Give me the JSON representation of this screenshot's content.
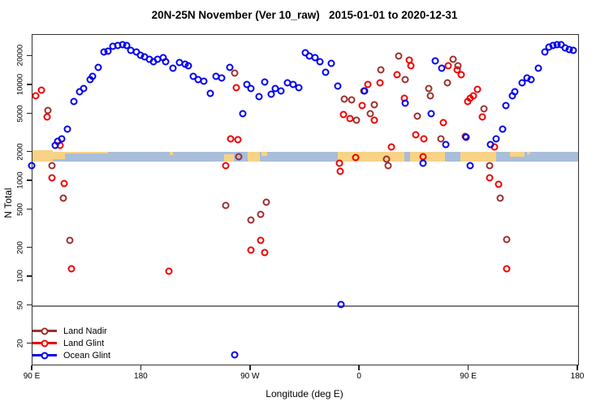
{
  "title": "20N-25N November (Ver 10_raw)   2015-01-01 to 2020-12-31",
  "legend": {
    "items": [
      {
        "label": "Land Nadir",
        "series": "land-nadir",
        "color": "#9e2f2f"
      },
      {
        "label": "Land Glint",
        "series": "land-glint",
        "color": "#ee0000"
      },
      {
        "label": "Ocean Glint",
        "series": "ocean-glint",
        "color": "#0000ee"
      }
    ]
  },
  "chart_data": {
    "type": "scatter",
    "title": "20N-25N November (Ver 10_raw)   2015-01-01 to 2020-12-31",
    "xlabel": "Longitude (deg E)",
    "ylabel": "N Total",
    "x_axis": {
      "range_deg_east": [
        90,
        540
      ],
      "ticks": [
        {
          "lon": 90,
          "label": "90 E"
        },
        {
          "lon": 180,
          "label": "180"
        },
        {
          "lon": 270,
          "label": "90 W"
        },
        {
          "lon": 360,
          "label": "0"
        },
        {
          "lon": 450,
          "label": "90 E"
        },
        {
          "lon": 540,
          "label": "180"
        }
      ]
    },
    "y_axis": {
      "scale": "log",
      "range": [
        12.2,
        33500
      ],
      "ticks": [
        20,
        50,
        100,
        200,
        500,
        1000,
        2000,
        5000,
        10000,
        20000
      ]
    },
    "reference_line_y": 50,
    "map_band": {
      "comment": "world-map strip of the 20N-25N latitude zone drawn across the plot",
      "top_value": 2030,
      "bottom_value": 1610,
      "ocean_color": "#a9bedb",
      "land_color": "#f8d386",
      "land_segments": [
        {
          "from": 90,
          "to": 107,
          "frac": 1.12,
          "anchor": "top"
        },
        {
          "from": 107,
          "to": 116.5,
          "frac": 0.8,
          "anchor": "top"
        },
        {
          "from": 116.5,
          "to": 152,
          "frac": 0.22,
          "anchor": "top"
        },
        {
          "from": 203,
          "to": 206,
          "frac": 0.35,
          "anchor": "top"
        },
        {
          "from": 248,
          "to": 256,
          "frac": 0.7,
          "anchor": "bottom"
        },
        {
          "from": 267.5,
          "to": 277.5,
          "frac": 1.0,
          "anchor": "top"
        },
        {
          "from": 279,
          "to": 283.5,
          "frac": 0.45,
          "anchor": "top"
        },
        {
          "from": 341.5,
          "to": 396.5,
          "frac": 1.0,
          "anchor": "top"
        },
        {
          "from": 401.5,
          "to": 430,
          "frac": 1.0,
          "anchor": "top"
        },
        {
          "from": 443,
          "to": 472.5,
          "frac": 1.0,
          "anchor": "top"
        },
        {
          "from": 484,
          "to": 496,
          "frac": 0.5,
          "anchor": "top"
        },
        {
          "from": 497.5,
          "to": 500.5,
          "frac": 0.3,
          "anchor": "top"
        }
      ]
    },
    "series": [
      {
        "name": "Land Nadir",
        "color": "#9e2f2f",
        "points": [
          [
            102.9,
            5450
          ],
          [
            106.3,
            1440
          ],
          [
            115.2,
            660
          ],
          [
            120.8,
            240
          ],
          [
            249.1,
            560
          ],
          [
            257,
            13300
          ],
          [
            260.3,
            1810
          ],
          [
            270.3,
            396
          ],
          [
            278.1,
            446
          ],
          [
            282.6,
            600
          ],
          [
            347.4,
            7200
          ],
          [
            353,
            7000
          ],
          [
            357.5,
            4350
          ],
          [
            363,
            8800
          ],
          [
            368.5,
            5100
          ],
          [
            371.9,
            6300
          ],
          [
            377.5,
            14500
          ],
          [
            381.9,
            1700
          ],
          [
            383,
            1440
          ],
          [
            392,
            20100
          ],
          [
            397.6,
            11500
          ],
          [
            407.5,
            4800
          ],
          [
            416.5,
            9200
          ],
          [
            417.9,
            7700
          ],
          [
            426.5,
            2760
          ],
          [
            432,
            10500
          ],
          [
            437,
            18800
          ],
          [
            441.1,
            16000
          ],
          [
            446.6,
            2950
          ],
          [
            462.3,
            5700
          ],
          [
            466.8,
            1440
          ],
          [
            475.7,
            660
          ],
          [
            481.3,
            245
          ]
        ]
      },
      {
        "name": "Land Glint",
        "color": "#ee0000",
        "points": [
          [
            92.9,
            7800
          ],
          [
            97.4,
            8900
          ],
          [
            101.8,
            4650
          ],
          [
            106.3,
            1075
          ],
          [
            113,
            2340
          ],
          [
            116.3,
            940
          ],
          [
            121.9,
            122
          ],
          [
            202.3,
            116
          ],
          [
            249.1,
            1440
          ],
          [
            253.6,
            2760
          ],
          [
            258.1,
            9500
          ],
          [
            259.2,
            2720
          ],
          [
            270.3,
            189
          ],
          [
            278.1,
            240
          ],
          [
            281.5,
            179
          ],
          [
            342.9,
            1540
          ],
          [
            344,
            1270
          ],
          [
            346.3,
            5000
          ],
          [
            351.9,
            4500
          ],
          [
            356.4,
            1770
          ],
          [
            361.9,
            6100
          ],
          [
            366.3,
            10200
          ],
          [
            372,
            4350
          ],
          [
            376.3,
            10500
          ],
          [
            386.3,
            2280
          ],
          [
            390.9,
            12800
          ],
          [
            396.5,
            7300
          ],
          [
            401,
            18300
          ],
          [
            401.8,
            15900
          ],
          [
            406.4,
            3050
          ],
          [
            412,
            1810
          ],
          [
            413.1,
            2760
          ],
          [
            428.7,
            4100
          ],
          [
            433.1,
            16000
          ],
          [
            440,
            14500
          ],
          [
            443.4,
            13000
          ],
          [
            449,
            6800
          ],
          [
            451.2,
            7300
          ],
          [
            453.4,
            7700
          ],
          [
            456.8,
            9100
          ],
          [
            461.2,
            4650
          ],
          [
            466.8,
            1075
          ],
          [
            471.3,
            2280
          ],
          [
            474.6,
            920
          ],
          [
            481.3,
            123
          ]
        ]
      },
      {
        "name": "Ocean Glint",
        "color": "#0000ee",
        "points": [
          [
            89.3,
            1450
          ],
          [
            108.5,
            2350
          ],
          [
            110.8,
            2600
          ],
          [
            114.1,
            2760
          ],
          [
            118.6,
            3470
          ],
          [
            124.1,
            6800
          ],
          [
            128.6,
            8600
          ],
          [
            132,
            9200
          ],
          [
            137.5,
            11500
          ],
          [
            139.8,
            12300
          ],
          [
            144.2,
            15400
          ],
          [
            148.7,
            22100
          ],
          [
            152.1,
            22800
          ],
          [
            156.5,
            25500
          ],
          [
            160.5,
            26200
          ],
          [
            164.3,
            26600
          ],
          [
            167.7,
            26000
          ],
          [
            171,
            23300
          ],
          [
            175.5,
            22400
          ],
          [
            178.8,
            20700
          ],
          [
            182.2,
            19700
          ],
          [
            186.6,
            18800
          ],
          [
            190,
            17600
          ],
          [
            193.3,
            18800
          ],
          [
            197.8,
            19400
          ],
          [
            200,
            17600
          ],
          [
            206.1,
            15200
          ],
          [
            211.2,
            17300
          ],
          [
            215.7,
            16500
          ],
          [
            218.6,
            16000
          ],
          [
            222.4,
            12300
          ],
          [
            226.8,
            11500
          ],
          [
            231.3,
            11100
          ],
          [
            236.9,
            8300
          ],
          [
            241.3,
            12300
          ],
          [
            245.8,
            11900
          ],
          [
            252.5,
            15400
          ],
          [
            256.9,
            15.3
          ],
          [
            263.6,
            5100
          ],
          [
            267,
            10100
          ],
          [
            270.3,
            9200
          ],
          [
            277,
            7600
          ],
          [
            281.5,
            10800
          ],
          [
            287.1,
            8100
          ],
          [
            290.4,
            9200
          ],
          [
            294.9,
            8700
          ],
          [
            300.5,
            10500
          ],
          [
            305,
            10100
          ],
          [
            309.5,
            9500
          ],
          [
            315,
            22000
          ],
          [
            318.4,
            20100
          ],
          [
            322.9,
            19400
          ],
          [
            327.3,
            17600
          ],
          [
            331.8,
            13600
          ],
          [
            336.2,
            17000
          ],
          [
            341.8,
            9800
          ],
          [
            344.7,
            52
          ],
          [
            364.1,
            8700
          ],
          [
            397.6,
            6500
          ],
          [
            412,
            1540
          ],
          [
            419,
            5100
          ],
          [
            422,
            17900
          ],
          [
            427.6,
            15000
          ],
          [
            430.9,
            2420
          ],
          [
            447.8,
            2860
          ],
          [
            451.2,
            1440
          ],
          [
            467.9,
            2420
          ],
          [
            472.4,
            2760
          ],
          [
            478,
            3470
          ],
          [
            480.2,
            6200
          ],
          [
            485.8,
            7700
          ],
          [
            487.9,
            8600
          ],
          [
            493.6,
            10500
          ],
          [
            498,
            11900
          ],
          [
            501.4,
            11500
          ],
          [
            507,
            15000
          ],
          [
            512.6,
            22100
          ],
          [
            515.9,
            25200
          ],
          [
            519.3,
            26000
          ],
          [
            522.6,
            26400
          ],
          [
            526,
            26700
          ],
          [
            529.3,
            24400
          ],
          [
            532.7,
            23600
          ],
          [
            536,
            23300
          ]
        ]
      }
    ]
  }
}
